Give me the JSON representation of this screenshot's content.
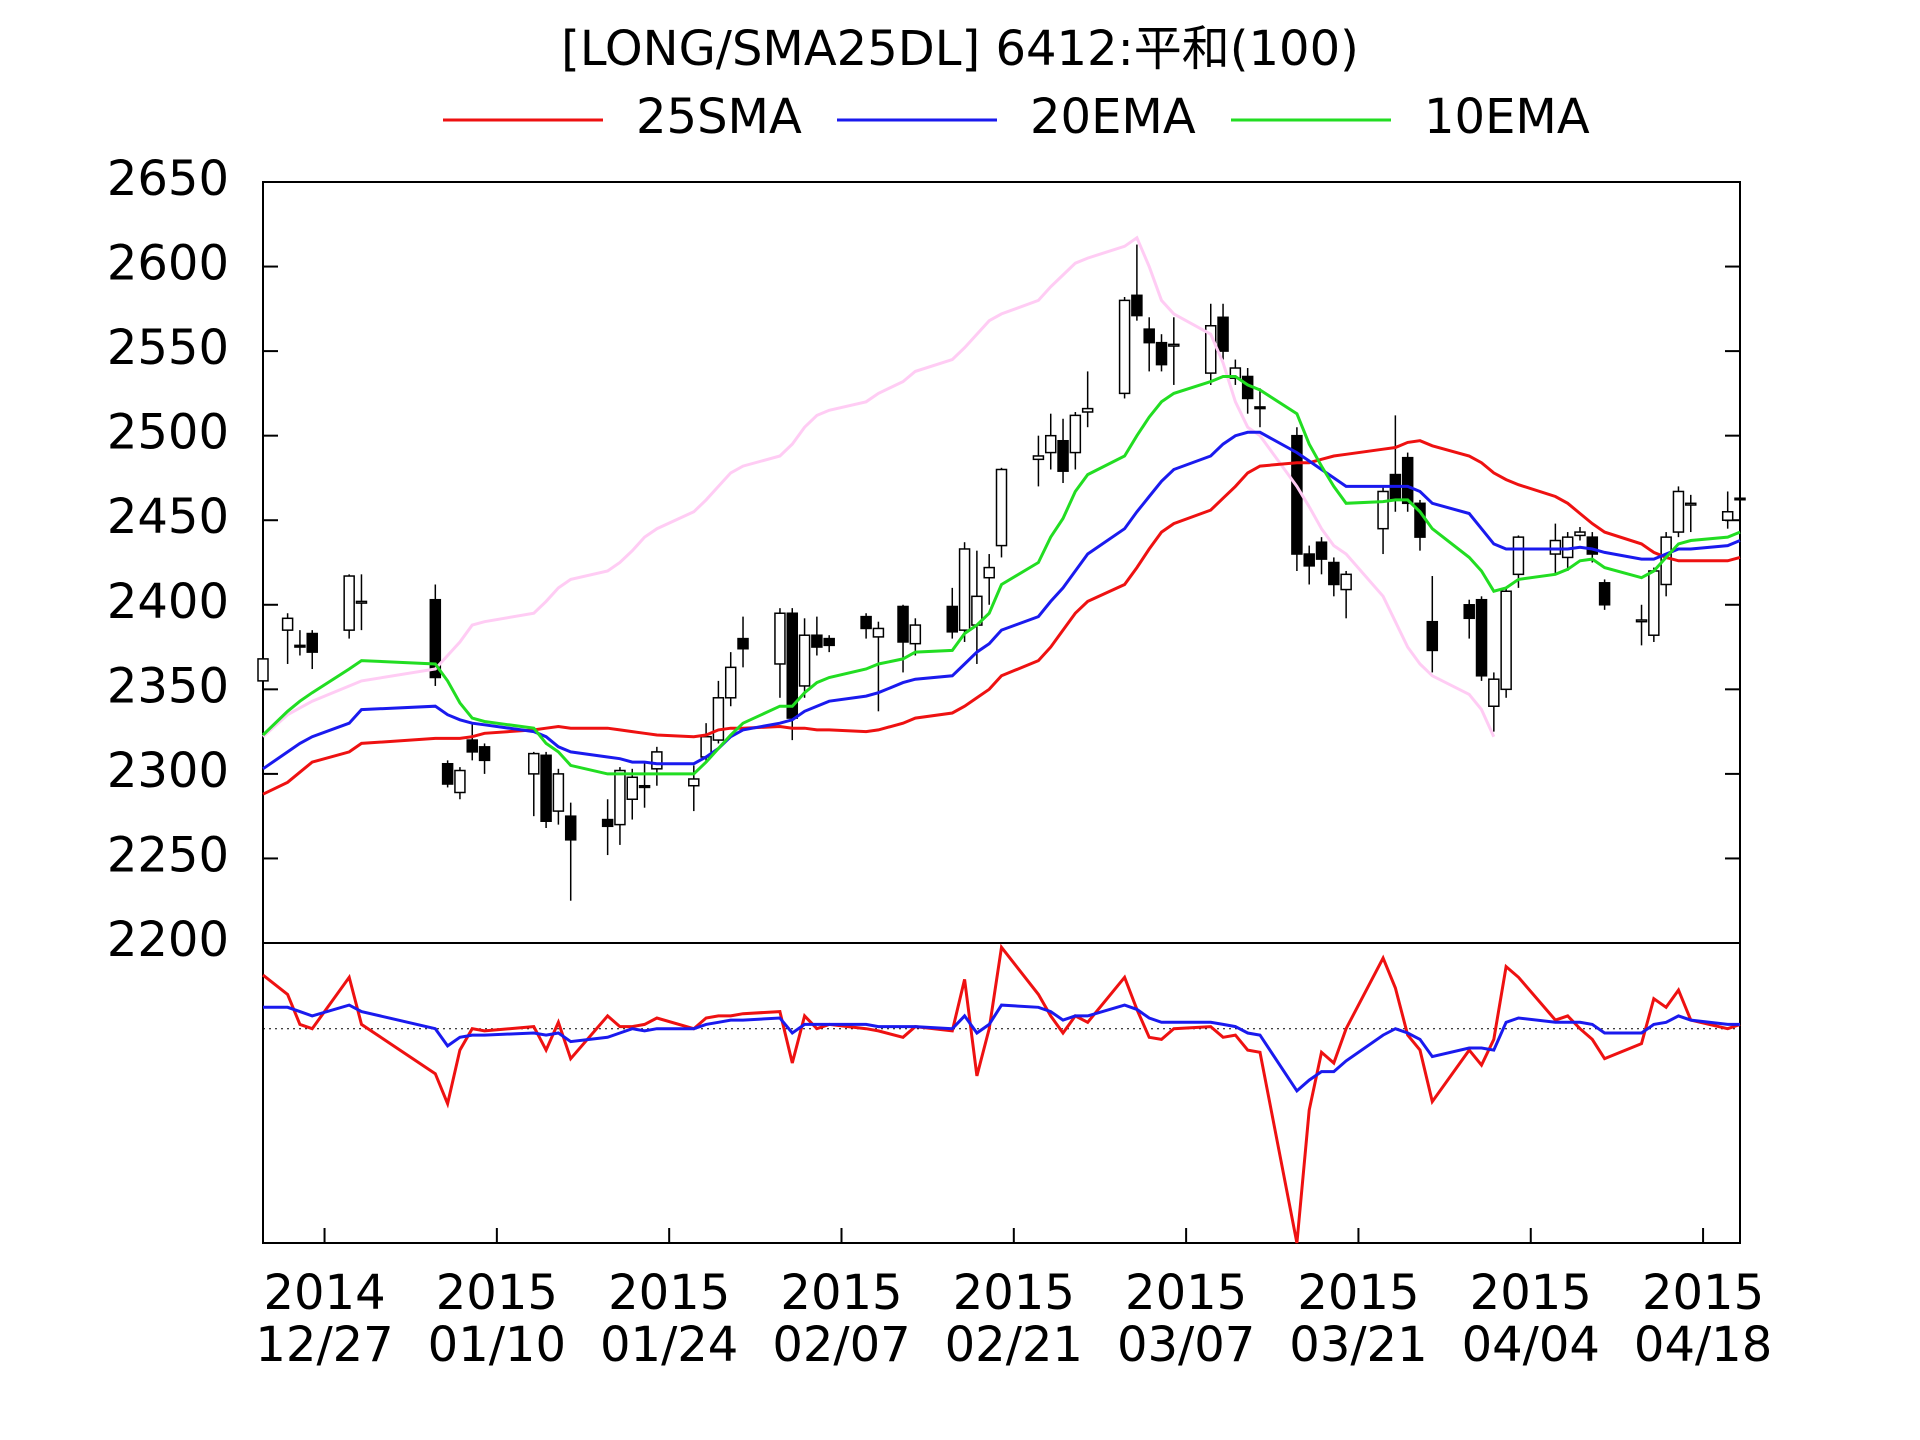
{
  "chart_data": [
    {
      "type": "candlestick",
      "title": "[LONG/SMA25DL] 6412:平和(100)",
      "x": [
        "2014-12-22",
        "2014-12-24",
        "2014-12-25",
        "2014-12-26",
        "2014-12-29",
        "2014-12-30",
        "2015-01-05",
        "2015-01-06",
        "2015-01-07",
        "2015-01-08",
        "2015-01-09",
        "2015-01-13",
        "2015-01-14",
        "2015-01-15",
        "2015-01-16",
        "2015-01-19",
        "2015-01-20",
        "2015-01-21",
        "2015-01-22",
        "2015-01-23",
        "2015-01-26",
        "2015-01-27",
        "2015-01-28",
        "2015-01-29",
        "2015-01-30",
        "2015-02-02",
        "2015-02-03",
        "2015-02-04",
        "2015-02-05",
        "2015-02-06",
        "2015-02-09",
        "2015-02-10",
        "2015-02-12",
        "2015-02-13",
        "2015-02-16",
        "2015-02-17",
        "2015-02-18",
        "2015-02-19",
        "2015-02-20",
        "2015-02-23",
        "2015-02-24",
        "2015-02-25",
        "2015-02-26",
        "2015-02-27",
        "2015-03-02",
        "2015-03-03",
        "2015-03-04",
        "2015-03-05",
        "2015-03-06",
        "2015-03-09",
        "2015-03-10",
        "2015-03-11",
        "2015-03-12",
        "2015-03-13",
        "2015-03-16",
        "2015-03-17",
        "2015-03-18",
        "2015-03-19",
        "2015-03-20",
        "2015-03-23",
        "2015-03-24",
        "2015-03-25",
        "2015-03-26",
        "2015-03-27",
        "2015-03-30",
        "2015-03-31",
        "2015-04-01",
        "2015-04-02",
        "2015-04-03",
        "2015-04-06",
        "2015-04-07",
        "2015-04-08",
        "2015-04-09",
        "2015-04-10",
        "2015-04-13",
        "2015-04-14",
        "2015-04-15",
        "2015-04-16",
        "2015-04-17",
        "2015-04-20",
        "2015-04-21"
      ],
      "open": [
        2355,
        2385,
        2376,
        2383,
        2385,
        2401,
        2403,
        2306,
        2289,
        2320,
        2316,
        2300,
        2311,
        2278,
        2275,
        2273,
        2270,
        2285,
        2293,
        2303,
        2293,
        2310,
        2320,
        2345,
        2380,
        2365,
        2395,
        2352,
        2382,
        2380,
        2393,
        2381,
        2399,
        2377,
        2399,
        2385,
        2388,
        2416,
        2435,
        2486,
        2490,
        2497,
        2490,
        2514,
        2525,
        2583,
        2563,
        2555,
        2553,
        2537,
        2570,
        2534,
        2535,
        2517,
        2500,
        2430,
        2437,
        2425,
        2409,
        2445,
        2477,
        2487,
        2460,
        2390,
        2400,
        2403,
        2340,
        2350,
        2418,
        2430,
        2428,
        2441,
        2440,
        2413,
        2390,
        2382,
        2412,
        2443,
        2459,
        2450,
        2463
      ],
      "high": [
        2370,
        2395,
        2385,
        2385,
        2418,
        2418,
        2412,
        2308,
        2304,
        2330,
        2318,
        2313,
        2313,
        2303,
        2283,
        2285,
        2304,
        2303,
        2307,
        2316,
        2305,
        2330,
        2355,
        2372,
        2393,
        2398,
        2398,
        2392,
        2393,
        2382,
        2395,
        2390,
        2400,
        2392,
        2410,
        2437,
        2432,
        2430,
        2481,
        2500,
        2513,
        2510,
        2514,
        2538,
        2582,
        2613,
        2570,
        2560,
        2570,
        2578,
        2578,
        2545,
        2540,
        2528,
        2505,
        2435,
        2440,
        2428,
        2420,
        2470,
        2512,
        2490,
        2462,
        2417,
        2403,
        2405,
        2360,
        2410,
        2441,
        2448,
        2443,
        2446,
        2443,
        2415,
        2400,
        2422,
        2443,
        2470,
        2465,
        2467,
        2466
      ],
      "low": [
        2352,
        2365,
        2370,
        2362,
        2380,
        2385,
        2352,
        2292,
        2285,
        2308,
        2300,
        2275,
        2268,
        2270,
        2225,
        2252,
        2258,
        2273,
        2280,
        2293,
        2278,
        2307,
        2318,
        2340,
        2363,
        2345,
        2320,
        2345,
        2370,
        2372,
        2380,
        2337,
        2360,
        2370,
        2380,
        2378,
        2365,
        2400,
        2428,
        2470,
        2480,
        2472,
        2480,
        2505,
        2522,
        2568,
        2538,
        2538,
        2530,
        2530,
        2545,
        2530,
        2513,
        2505,
        2420,
        2412,
        2418,
        2405,
        2392,
        2430,
        2455,
        2455,
        2432,
        2360,
        2380,
        2355,
        2325,
        2345,
        2410,
        2418,
        2420,
        2438,
        2425,
        2397,
        2376,
        2378,
        2405,
        2440,
        2443,
        2445,
        2440
      ],
      "close": [
        2368,
        2392,
        2375,
        2372,
        2417,
        2402,
        2357,
        2294,
        2302,
        2313,
        2308,
        2312,
        2272,
        2300,
        2261,
        2269,
        2302,
        2298,
        2292,
        2313,
        2297,
        2322,
        2345,
        2363,
        2374,
        2395,
        2333,
        2382,
        2375,
        2376,
        2386,
        2386,
        2378,
        2388,
        2384,
        2433,
        2405,
        2422,
        2480,
        2488,
        2500,
        2479,
        2512,
        2516,
        2580,
        2571,
        2555,
        2542,
        2554,
        2565,
        2550,
        2540,
        2522,
        2516,
        2430,
        2423,
        2427,
        2412,
        2418,
        2467,
        2462,
        2460,
        2440,
        2373,
        2392,
        2358,
        2356,
        2408,
        2440,
        2438,
        2440,
        2443,
        2430,
        2400,
        2391,
        2420,
        2440,
        2467,
        2460,
        2455,
        2463
      ],
      "up_color": "#ffffff",
      "down_color": "#000000",
      "series": [
        {
          "color": "#ffccf4",
          "values": [
            2322,
            2335,
            2339,
            2343,
            2352,
            2355,
            2362,
            2370,
            2378,
            2388,
            2390,
            2395,
            2402,
            2410,
            2415,
            2420,
            2425,
            2432,
            2440,
            2445,
            2455,
            2462,
            2470,
            2478,
            2482,
            2488,
            2495,
            2505,
            2512,
            2515,
            2520,
            2525,
            2532,
            2538,
            2545,
            2552,
            2560,
            2568,
            2572,
            2580,
            2588,
            2595,
            2602,
            2605,
            2612,
            2617,
            2600,
            2580,
            2572,
            2560,
            2543,
            2520,
            2505,
            2500,
            2470,
            2458,
            2445,
            2435,
            2430,
            2405,
            2390,
            2375,
            2365,
            2358,
            2347,
            2338,
            2322,
            null,
            null,
            null,
            null,
            null,
            null,
            null,
            null,
            null,
            null,
            null,
            null,
            null,
            null
          ]
        },
        {
          "name": "25SMA",
          "color": "#ee1111",
          "values": [
            2288,
            2295,
            2301,
            2307,
            2313,
            2318,
            2321,
            2321,
            2321,
            2322,
            2324,
            2326,
            2327,
            2328,
            2327,
            2327,
            2326,
            2325,
            2324,
            2323,
            2322,
            2323,
            2326,
            2327,
            2327,
            2328,
            2327,
            2327,
            2326,
            2326,
            2325,
            2326,
            2330,
            2333,
            2336,
            2340,
            2345,
            2350,
            2358,
            2367,
            2375,
            2385,
            2395,
            2402,
            2412,
            2422,
            2433,
            2443,
            2448,
            2456,
            2463,
            2470,
            2478,
            2482,
            2484,
            2484,
            2486,
            2488,
            2489,
            2492,
            2493,
            2496,
            2497,
            2494,
            2488,
            2484,
            2478,
            2474,
            2471,
            2464,
            2460,
            2454,
            2448,
            2443,
            2436,
            2431,
            2428,
            2426,
            2426,
            2426,
            2428
          ]
        },
        {
          "name": "20EMA",
          "color": "#1a1aee",
          "values": [
            2303,
            2313,
            2318,
            2322,
            2330,
            2338,
            2340,
            2335,
            2332,
            2330,
            2329,
            2325,
            2322,
            2316,
            2313,
            2310,
            2309,
            2307,
            2307,
            2306,
            2306,
            2310,
            2315,
            2322,
            2326,
            2330,
            2332,
            2337,
            2340,
            2343,
            2346,
            2348,
            2354,
            2356,
            2358,
            2365,
            2372,
            2377,
            2385,
            2393,
            2402,
            2410,
            2420,
            2430,
            2445,
            2455,
            2464,
            2473,
            2480,
            2488,
            2495,
            2500,
            2502,
            2502,
            2490,
            2485,
            2480,
            2475,
            2470,
            2470,
            2470,
            2470,
            2467,
            2460,
            2454,
            2445,
            2436,
            2433,
            2433,
            2433,
            2433,
            2434,
            2433,
            2431,
            2427,
            2427,
            2430,
            2433,
            2433,
            2435,
            2438
          ]
        },
        {
          "name": "10EMA",
          "color": "#22dd22",
          "values": [
            2323,
            2337,
            2343,
            2348,
            2362,
            2367,
            2365,
            2355,
            2342,
            2333,
            2331,
            2327,
            2318,
            2313,
            2305,
            2300,
            2300,
            2300,
            2300,
            2300,
            2300,
            2307,
            2315,
            2323,
            2330,
            2340,
            2340,
            2348,
            2354,
            2357,
            2362,
            2365,
            2368,
            2372,
            2373,
            2383,
            2388,
            2395,
            2412,
            2425,
            2440,
            2451,
            2467,
            2477,
            2488,
            2500,
            2511,
            2520,
            2525,
            2532,
            2535,
            2535,
            2530,
            2527,
            2513,
            2495,
            2482,
            2470,
            2460,
            2461,
            2462,
            2462,
            2455,
            2445,
            2428,
            2420,
            2408,
            2410,
            2415,
            2418,
            2421,
            2426,
            2427,
            2422,
            2416,
            2420,
            2428,
            2436,
            2438,
            2440,
            2443
          ]
        }
      ],
      "xlim": [
        "2014-12-22",
        "2015-04-21"
      ],
      "ylim": [
        2200,
        2650
      ],
      "yticks": [
        2200,
        2250,
        2300,
        2350,
        2400,
        2450,
        2500,
        2550,
        2600,
        2650
      ]
    },
    {
      "type": "line",
      "x": [
        "2014-12-22",
        "2014-12-24",
        "2014-12-25",
        "2014-12-26",
        "2014-12-29",
        "2014-12-30",
        "2015-01-05",
        "2015-01-06",
        "2015-01-07",
        "2015-01-08",
        "2015-01-09",
        "2015-01-13",
        "2015-01-14",
        "2015-01-15",
        "2015-01-16",
        "2015-01-19",
        "2015-01-20",
        "2015-01-21",
        "2015-01-22",
        "2015-01-23",
        "2015-01-26",
        "2015-01-27",
        "2015-01-28",
        "2015-01-29",
        "2015-01-30",
        "2015-02-02",
        "2015-02-03",
        "2015-02-04",
        "2015-02-05",
        "2015-02-06",
        "2015-02-09",
        "2015-02-10",
        "2015-02-12",
        "2015-02-13",
        "2015-02-16",
        "2015-02-17",
        "2015-02-18",
        "2015-02-19",
        "2015-02-20",
        "2015-02-23",
        "2015-02-24",
        "2015-02-25",
        "2015-02-26",
        "2015-02-27",
        "2015-03-02",
        "2015-03-03",
        "2015-03-04",
        "2015-03-05",
        "2015-03-06",
        "2015-03-09",
        "2015-03-10",
        "2015-03-11",
        "2015-03-12",
        "2015-03-13",
        "2015-03-16",
        "2015-03-17",
        "2015-03-18",
        "2015-03-19",
        "2015-03-20",
        "2015-03-23",
        "2015-03-24",
        "2015-03-25",
        "2015-03-26",
        "2015-03-27",
        "2015-03-30",
        "2015-03-31",
        "2015-04-01",
        "2015-04-02",
        "2015-04-03",
        "2015-04-06",
        "2015-04-07",
        "2015-04-08",
        "2015-04-09",
        "2015-04-10",
        "2015-04-13",
        "2015-04-14",
        "2015-04-15",
        "2015-04-16",
        "2015-04-17",
        "2015-04-20",
        "2015-04-21"
      ],
      "series": [
        {
          "color": "#ee1111",
          "values": [
            2.5,
            1.6,
            0.2,
            0.0,
            2.4,
            0.2,
            -2.1,
            -3.5,
            -1.0,
            0.0,
            -0.1,
            0.1,
            -1.0,
            0.3,
            -1.4,
            0.6,
            0.1,
            0.1,
            0.2,
            0.5,
            0.0,
            0.5,
            0.6,
            0.6,
            0.7,
            0.8,
            -1.6,
            0.6,
            0.0,
            0.2,
            0.0,
            -0.1,
            -0.4,
            0.1,
            -0.1,
            2.3,
            -2.2,
            0.0,
            3.8,
            1.6,
            0.6,
            -0.2,
            0.6,
            0.3,
            2.4,
            0.9,
            -0.4,
            -0.5,
            0.0,
            0.1,
            -0.4,
            -0.3,
            -1.0,
            -1.1,
            -10,
            -3.8,
            -1.1,
            -1.6,
            0.0,
            3.3,
            1.9,
            -0.3,
            -1.0,
            -3.4,
            -1.0,
            -1.7,
            -0.5,
            2.9,
            2.4,
            0.4,
            0.6,
            0.0,
            -0.5,
            -1.4,
            -0.7,
            1.4,
            1.0,
            1.8,
            0.4,
            0.0,
            0.2
          ]
        },
        {
          "color": "#1a1aee",
          "values": [
            1.0,
            1.0,
            0.8,
            0.6,
            1.1,
            0.8,
            0.0,
            -0.8,
            -0.4,
            -0.3,
            -0.3,
            -0.2,
            -0.3,
            -0.2,
            -0.6,
            -0.4,
            -0.2,
            0.0,
            -0.1,
            0.0,
            0.0,
            0.2,
            0.3,
            0.4,
            0.4,
            0.5,
            -0.2,
            0.2,
            0.2,
            0.2,
            0.2,
            0.1,
            0.1,
            0.1,
            0.0,
            0.6,
            -0.2,
            0.2,
            1.1,
            1.0,
            0.8,
            0.4,
            0.6,
            0.6,
            1.1,
            0.9,
            0.5,
            0.3,
            0.3,
            0.3,
            0.2,
            0.1,
            -0.2,
            -0.3,
            -2.9,
            -2.4,
            -2.0,
            -2.0,
            -1.5,
            -0.3,
            0.0,
            -0.2,
            -0.5,
            -1.3,
            -0.9,
            -0.9,
            -1.0,
            0.3,
            0.5,
            0.3,
            0.3,
            0.3,
            0.2,
            -0.2,
            -0.2,
            0.2,
            0.3,
            0.6,
            0.4,
            0.2,
            0.2
          ]
        }
      ],
      "hline": 0,
      "xlim": [
        "2014-12-22",
        "2015-04-21"
      ],
      "xticks": [
        {
          "value": "2014-12-27",
          "label": "2014\n12/27"
        },
        {
          "value": "2015-01-10",
          "label": "2015\n01/10"
        },
        {
          "value": "2015-01-24",
          "label": "2015\n01/24"
        },
        {
          "value": "2015-02-07",
          "label": "2015\n02/07"
        },
        {
          "value": "2015-02-21",
          "label": "2015\n02/21"
        },
        {
          "value": "2015-03-07",
          "label": "2015\n03/07"
        },
        {
          "value": "2015-03-21",
          "label": "2015\n03/21"
        },
        {
          "value": "2015-04-04",
          "label": "2015\n04/04"
        },
        {
          "value": "2015-04-18",
          "label": "2015\n04/18"
        }
      ],
      "ylim": [
        -10,
        4
      ]
    }
  ]
}
